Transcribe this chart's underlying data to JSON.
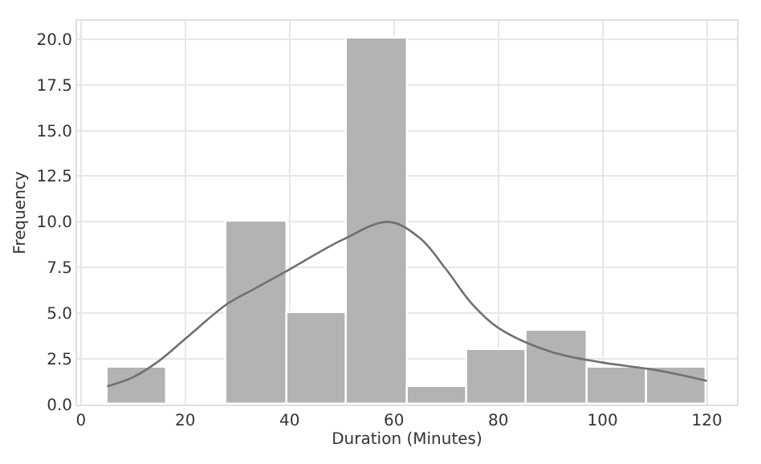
{
  "chart_data": {
    "type": "histogram",
    "xlabel": "Duration (Minutes)",
    "ylabel": "Frequency",
    "bins": [
      5,
      16.5,
      28,
      39.5,
      51,
      62.5,
      74,
      85.5,
      97,
      108.5,
      120
    ],
    "values": [
      2,
      0,
      10,
      5,
      20,
      1,
      3,
      4,
      2,
      2
    ],
    "color": "#b3b3b3",
    "series": [
      {
        "type": "line",
        "color": "#707070",
        "x": [
          5,
          10,
          15,
          20,
          28,
          33,
          40,
          50,
          59,
          65,
          70,
          75,
          80,
          90,
          100,
          110,
          120
        ],
        "values": [
          1.0,
          1.5,
          2.4,
          3.6,
          5.5,
          6.3,
          7.4,
          9.0,
          10.0,
          9.1,
          7.4,
          5.5,
          4.2,
          2.9,
          2.3,
          1.9,
          1.3
        ]
      }
    ],
    "xlim": [
      -0.75,
      125.75
    ],
    "xticks": [
      0,
      20,
      40,
      60,
      80,
      100,
      120
    ],
    "ylim": [
      0,
      21
    ],
    "yticks": [
      {
        "value": 0,
        "label": "0.0"
      },
      {
        "value": 2.5,
        "label": "2.5"
      },
      {
        "value": 5,
        "label": "5.0"
      },
      {
        "value": 7.5,
        "label": "7.5"
      },
      {
        "value": 10,
        "label": "10.0"
      },
      {
        "value": 12.5,
        "label": "12.5"
      },
      {
        "value": 15,
        "label": "15.0"
      },
      {
        "value": 17.5,
        "label": "17.5"
      },
      {
        "value": 20,
        "label": "20.0"
      }
    ],
    "grid": true
  }
}
